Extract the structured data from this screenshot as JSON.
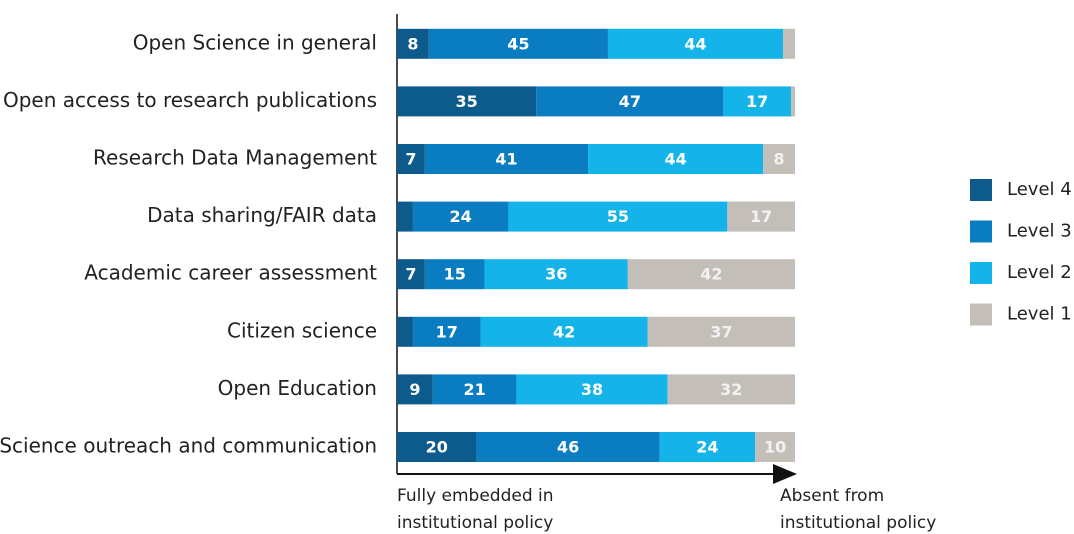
{
  "chart_data": {
    "type": "stacked-bar-horizontal",
    "categories": [
      "Open Science in general",
      "Open access to research publications",
      "Research Data Management",
      "Data sharing/FAIR data",
      "Academic career assessment",
      "Citizen science",
      "Open Education",
      "Science outreach and communication"
    ],
    "series": [
      {
        "name": "Level 4",
        "color": "#0d5a8c",
        "values": [
          8,
          35,
          7,
          4,
          7,
          4,
          9,
          20
        ],
        "value_labels": [
          "8",
          "35",
          "7",
          null,
          "7",
          null,
          "9",
          "20"
        ]
      },
      {
        "name": "Level 3",
        "color": "#0a7cc1",
        "values": [
          45,
          47,
          41,
          24,
          15,
          17,
          21,
          46
        ],
        "value_labels": [
          "45",
          "47",
          "41",
          "24",
          "15",
          "17",
          "21",
          "46"
        ]
      },
      {
        "name": "Level 2",
        "color": "#14b4ea",
        "values": [
          44,
          17,
          44,
          55,
          36,
          42,
          38,
          24
        ],
        "value_labels": [
          "44",
          "17",
          "44",
          "55",
          "36",
          "42",
          "38",
          "24"
        ]
      },
      {
        "name": "Level 1",
        "color": "#c3bfb8",
        "values": [
          3,
          1,
          8,
          17,
          42,
          37,
          32,
          10
        ],
        "value_labels": [
          null,
          null,
          "8",
          "17",
          "42",
          "37",
          "32",
          "10"
        ]
      }
    ],
    "xlim": [
      0,
      100
    ],
    "annotations": [
      [
        "Fully embedded in",
        "institutional policy"
      ],
      [
        "Absent from",
        "institutional policy"
      ]
    ],
    "legend": "right"
  }
}
